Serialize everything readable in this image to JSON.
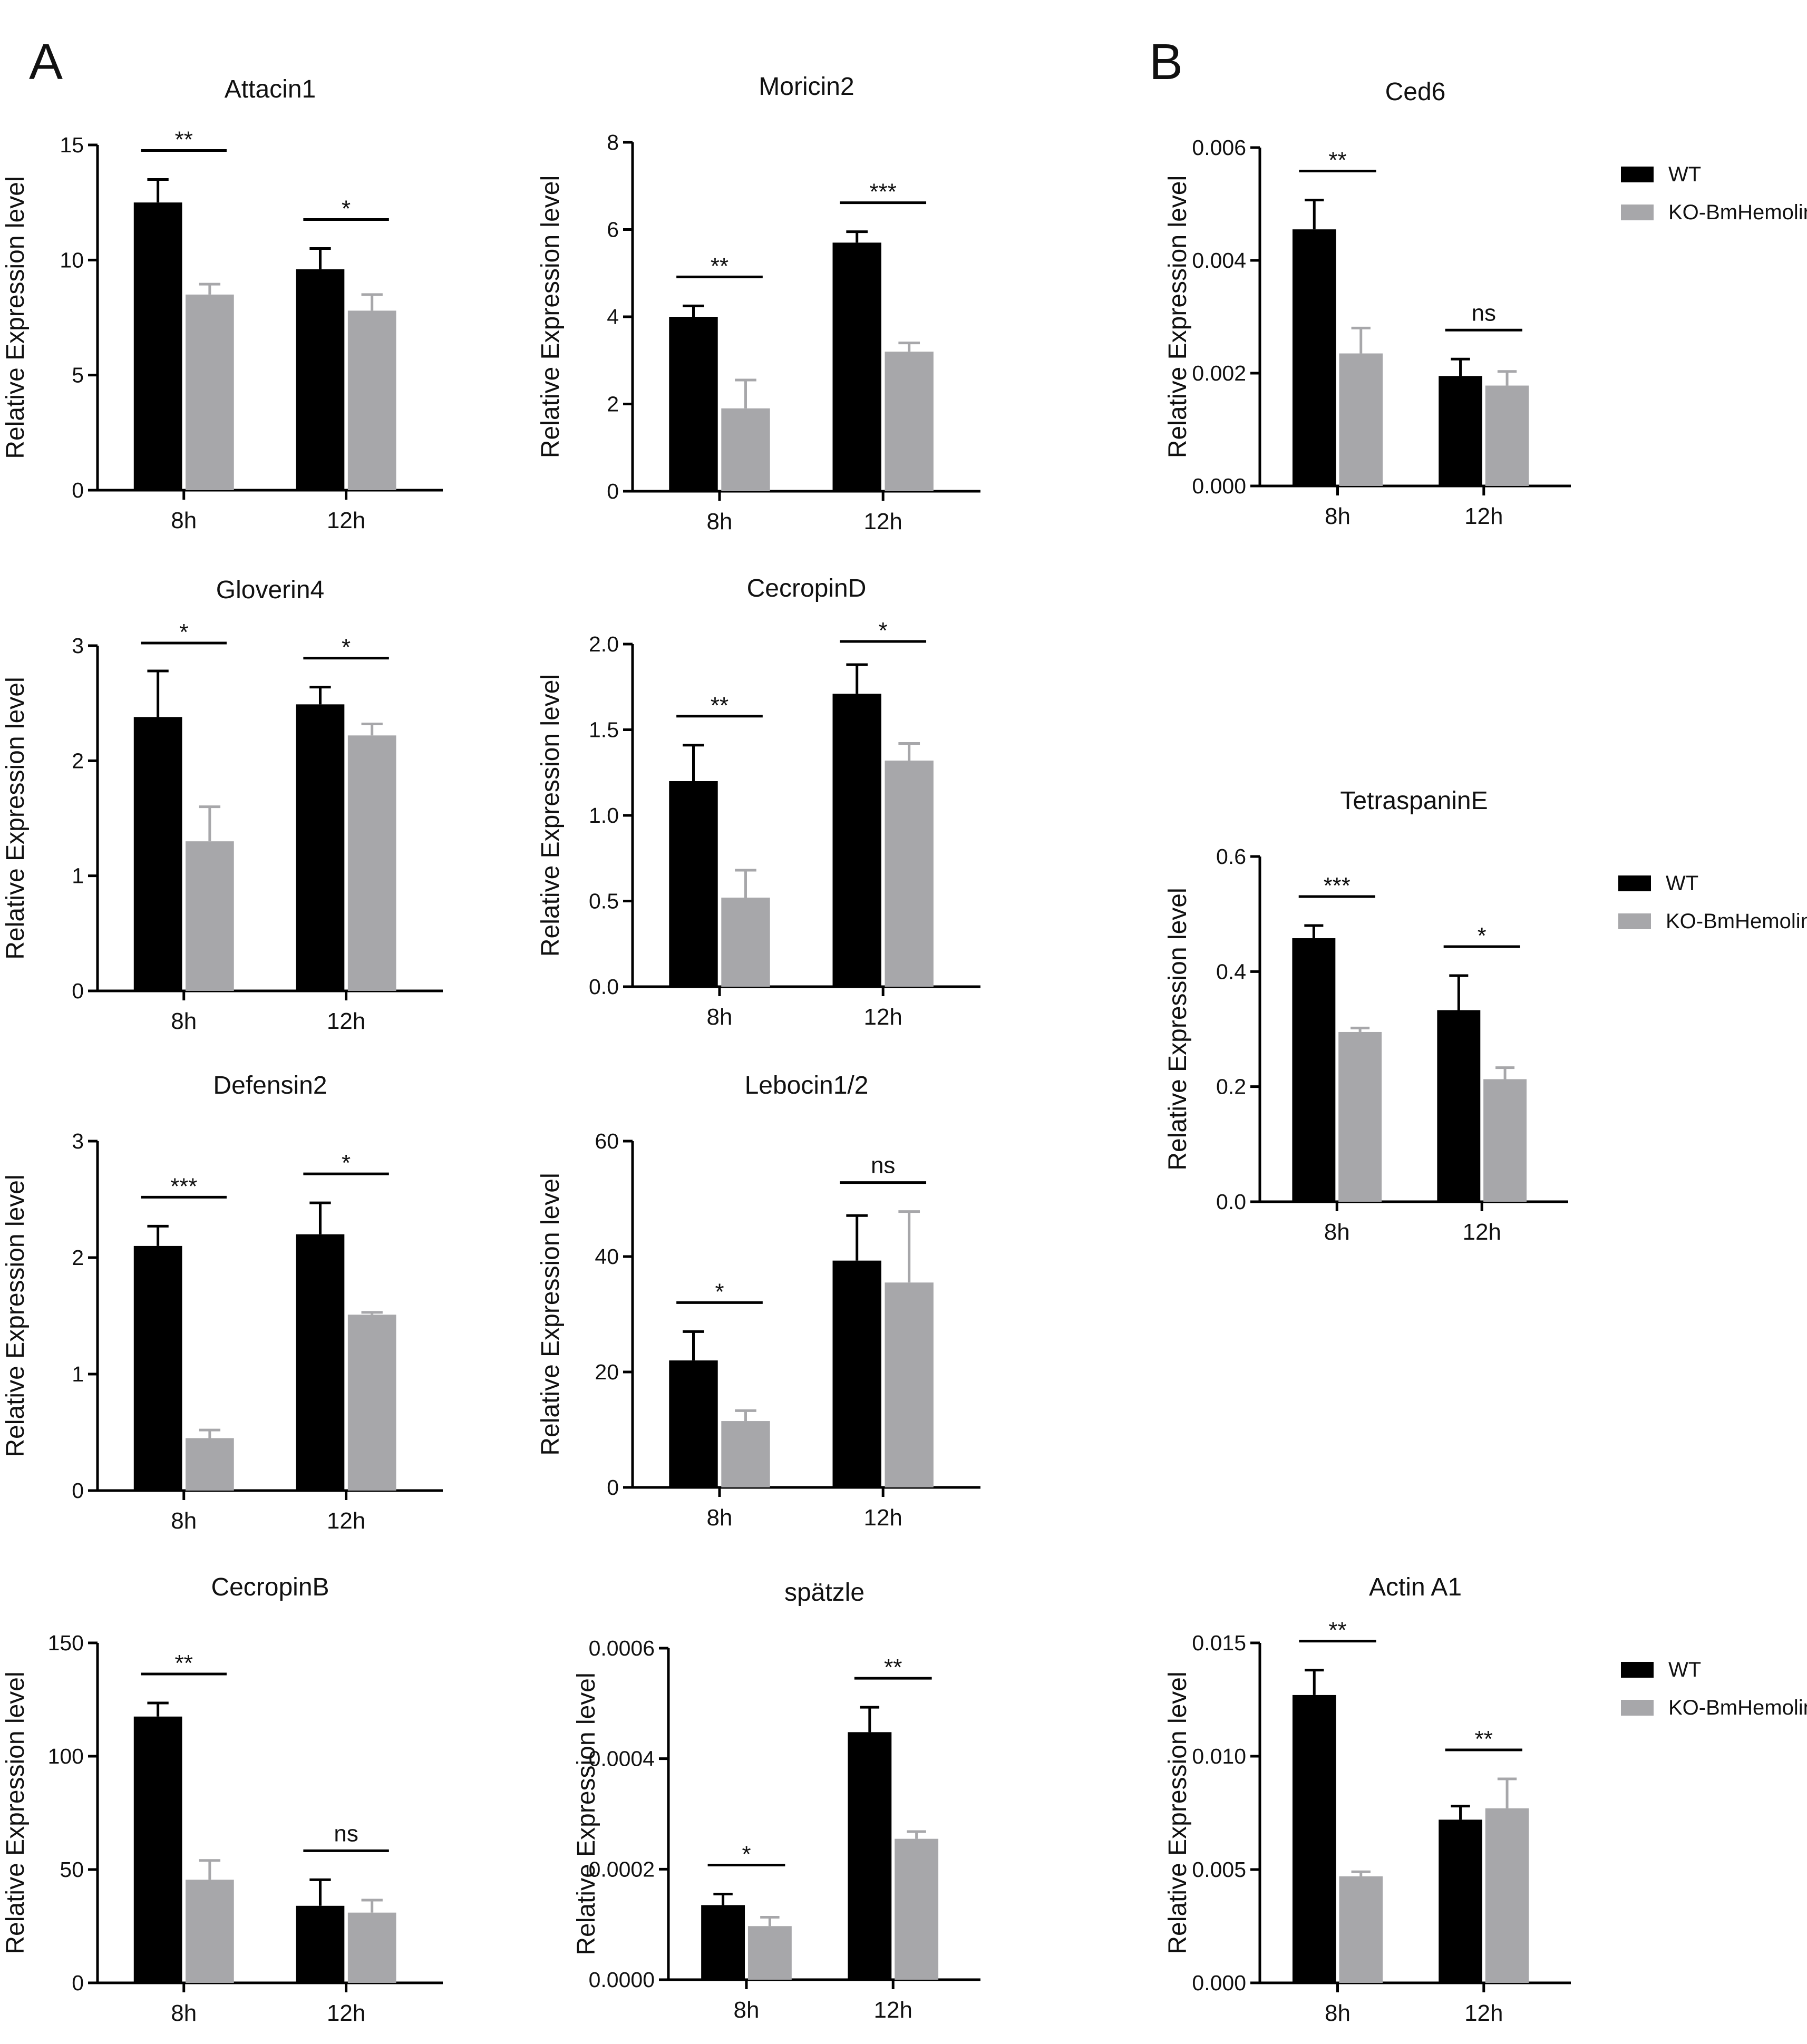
{
  "panel_labels": {
    "A": "A",
    "B": "B"
  },
  "series_names": [
    "WT",
    "KO-BmHemolin"
  ],
  "colors": {
    "WT": "#000000",
    "KO": "#a7a7aa"
  },
  "chart_data": [
    {
      "id": "attacin1",
      "type": "bar",
      "title": "Attacin1",
      "xlabel": "",
      "ylabel": "Relative Expression level",
      "categories": [
        "8h",
        "12h"
      ],
      "ylim": [
        0,
        15
      ],
      "yticks": [
        0,
        5,
        10,
        15
      ],
      "series": [
        {
          "name": "WT",
          "values": [
            12.5,
            9.6
          ],
          "errors": [
            1.0,
            0.9
          ]
        },
        {
          "name": "KO-BmHemolin",
          "values": [
            8.5,
            7.8
          ],
          "errors": [
            0.45,
            0.7
          ]
        }
      ],
      "significance": [
        "**",
        "*"
      ],
      "legend": false
    },
    {
      "id": "moricin2",
      "type": "bar",
      "title": "Moricin2",
      "xlabel": "",
      "ylabel": "Relative Expression level",
      "categories": [
        "8h",
        "12h"
      ],
      "ylim": [
        0,
        8
      ],
      "yticks": [
        0,
        2,
        4,
        6,
        8
      ],
      "series": [
        {
          "name": "WT",
          "values": [
            4.0,
            5.7
          ],
          "errors": [
            0.25,
            0.25
          ]
        },
        {
          "name": "KO-BmHemolin",
          "values": [
            1.9,
            3.2
          ],
          "errors": [
            0.65,
            0.2
          ]
        }
      ],
      "significance": [
        "**",
        "***"
      ],
      "legend": false
    },
    {
      "id": "ced6",
      "type": "bar",
      "title": "Ced6",
      "xlabel": "",
      "ylabel": "Relative Expression level",
      "categories": [
        "8h",
        "12h"
      ],
      "ylim": [
        0,
        0.006
      ],
      "yticks": [
        0.0,
        0.002,
        0.004,
        0.006
      ],
      "tick_labels": [
        "0.000",
        "0.002",
        "0.004",
        "0.006"
      ],
      "series": [
        {
          "name": "WT",
          "values": [
            0.00455,
            0.00195
          ],
          "errors": [
            0.00052,
            0.0003
          ]
        },
        {
          "name": "KO-BmHemolin",
          "values": [
            0.00235,
            0.00178
          ],
          "errors": [
            0.00045,
            0.00025
          ]
        }
      ],
      "significance": [
        "**",
        "ns"
      ],
      "legend": true
    },
    {
      "id": "gloverin4",
      "type": "bar",
      "title": "Gloverin4",
      "xlabel": "",
      "ylabel": "Relative Expression level",
      "categories": [
        "8h",
        "12h"
      ],
      "ylim": [
        0,
        3
      ],
      "yticks": [
        0,
        1,
        2,
        3
      ],
      "series": [
        {
          "name": "WT",
          "values": [
            2.38,
            2.49
          ],
          "errors": [
            0.4,
            0.15
          ]
        },
        {
          "name": "KO-BmHemolin",
          "values": [
            1.3,
            2.22
          ],
          "errors": [
            0.3,
            0.1
          ]
        }
      ],
      "significance": [
        "*",
        "*"
      ],
      "legend": false
    },
    {
      "id": "cecropind",
      "type": "bar",
      "title": "CecropinD",
      "xlabel": "",
      "ylabel": "Relative Expression level",
      "categories": [
        "8h",
        "12h"
      ],
      "ylim": [
        0,
        2.0
      ],
      "yticks": [
        0.0,
        0.5,
        1.0,
        1.5,
        2.0
      ],
      "tick_labels": [
        "0.0",
        "0.5",
        "1.0",
        "1.5",
        "2.0"
      ],
      "series": [
        {
          "name": "WT",
          "values": [
            1.2,
            1.71
          ],
          "errors": [
            0.21,
            0.17
          ]
        },
        {
          "name": "KO-BmHemolin",
          "values": [
            0.52,
            1.32
          ],
          "errors": [
            0.16,
            0.1
          ]
        }
      ],
      "significance": [
        "**",
        "*"
      ],
      "legend": false
    },
    {
      "id": "defensin2",
      "type": "bar",
      "title": "Defensin2",
      "xlabel": "",
      "ylabel": "Relative Expression level",
      "categories": [
        "8h",
        "12h"
      ],
      "ylim": [
        0,
        3
      ],
      "yticks": [
        0,
        1,
        2,
        3
      ],
      "series": [
        {
          "name": "WT",
          "values": [
            2.1,
            2.2
          ],
          "errors": [
            0.17,
            0.27
          ]
        },
        {
          "name": "KO-BmHemolin",
          "values": [
            0.45,
            1.51
          ],
          "errors": [
            0.07,
            0.02
          ]
        }
      ],
      "significance": [
        "***",
        "*"
      ],
      "legend": false
    },
    {
      "id": "lebocin12",
      "type": "bar",
      "title": "Lebocin1/2",
      "xlabel": "",
      "ylabel": "Relative Expression level",
      "categories": [
        "8h",
        "12h"
      ],
      "ylim": [
        0,
        60
      ],
      "yticks": [
        0,
        20,
        40,
        60
      ],
      "series": [
        {
          "name": "WT",
          "values": [
            22.0,
            39.3
          ],
          "errors": [
            5.0,
            7.8
          ]
        },
        {
          "name": "KO-BmHemolin",
          "values": [
            11.5,
            35.5
          ],
          "errors": [
            1.8,
            12.3
          ]
        }
      ],
      "significance": [
        "*",
        "ns"
      ],
      "legend": false
    },
    {
      "id": "tetraspanine",
      "type": "bar",
      "title": "TetraspaninE",
      "xlabel": "",
      "ylabel": "Relative Expression level",
      "categories": [
        "8h",
        "12h"
      ],
      "ylim": [
        0,
        0.6
      ],
      "yticks": [
        0.0,
        0.2,
        0.4,
        0.6
      ],
      "tick_labels": [
        "0.0",
        "0.2",
        "0.4",
        "0.6"
      ],
      "series": [
        {
          "name": "WT",
          "values": [
            0.458,
            0.333
          ],
          "errors": [
            0.022,
            0.06
          ]
        },
        {
          "name": "KO-BmHemolin",
          "values": [
            0.295,
            0.213
          ],
          "errors": [
            0.007,
            0.02
          ]
        }
      ],
      "significance": [
        "***",
        "*"
      ],
      "legend": true
    },
    {
      "id": "cecropinb",
      "type": "bar",
      "title": "CecropinB",
      "xlabel": "",
      "ylabel": "Relative Expression level",
      "categories": [
        "8h",
        "12h"
      ],
      "ylim": [
        0,
        150
      ],
      "yticks": [
        0,
        50,
        100,
        150
      ],
      "series": [
        {
          "name": "WT",
          "values": [
            117.5,
            34.0
          ],
          "errors": [
            6.0,
            11.5
          ]
        },
        {
          "name": "KO-BmHemolin",
          "values": [
            45.5,
            31.0
          ],
          "errors": [
            8.5,
            5.5
          ]
        }
      ],
      "significance": [
        "**",
        "ns"
      ],
      "legend": false
    },
    {
      "id": "spatzle",
      "type": "bar",
      "title": "spätzle",
      "xlabel": "",
      "ylabel": "Relative Expression level",
      "categories": [
        "8h",
        "12h"
      ],
      "ylim": [
        0,
        0.0006
      ],
      "yticks": [
        0,
        0.0002,
        0.0004,
        0.0006
      ],
      "tick_labels": [
        "0.0000",
        "0.0002",
        "0.0004",
        "0.0006"
      ],
      "series": [
        {
          "name": "WT",
          "values": [
            0.000135,
            0.000448
          ],
          "errors": [
            2e-05,
            4.5e-05
          ]
        },
        {
          "name": "KO-BmHemolin",
          "values": [
            9.7e-05,
            0.000255
          ],
          "errors": [
            1.6e-05,
            1.3e-05
          ]
        }
      ],
      "significance": [
        "*",
        "**"
      ],
      "legend": false
    },
    {
      "id": "actina1",
      "type": "bar",
      "title": "Actin A1",
      "xlabel": "",
      "ylabel": "Relative Expression level",
      "categories": [
        "8h",
        "12h"
      ],
      "ylim": [
        0,
        0.015
      ],
      "yticks": [
        0,
        0.005,
        0.01,
        0.015
      ],
      "tick_labels": [
        "0.000",
        "0.005",
        "0.010",
        "0.015"
      ],
      "series": [
        {
          "name": "WT",
          "values": [
            0.0127,
            0.0072
          ],
          "errors": [
            0.0011,
            0.0006
          ]
        },
        {
          "name": "KO-BmHemolin",
          "values": [
            0.0047,
            0.0077
          ],
          "errors": [
            0.0002,
            0.0013
          ]
        }
      ],
      "significance": [
        "**",
        "**"
      ],
      "legend": true
    }
  ]
}
